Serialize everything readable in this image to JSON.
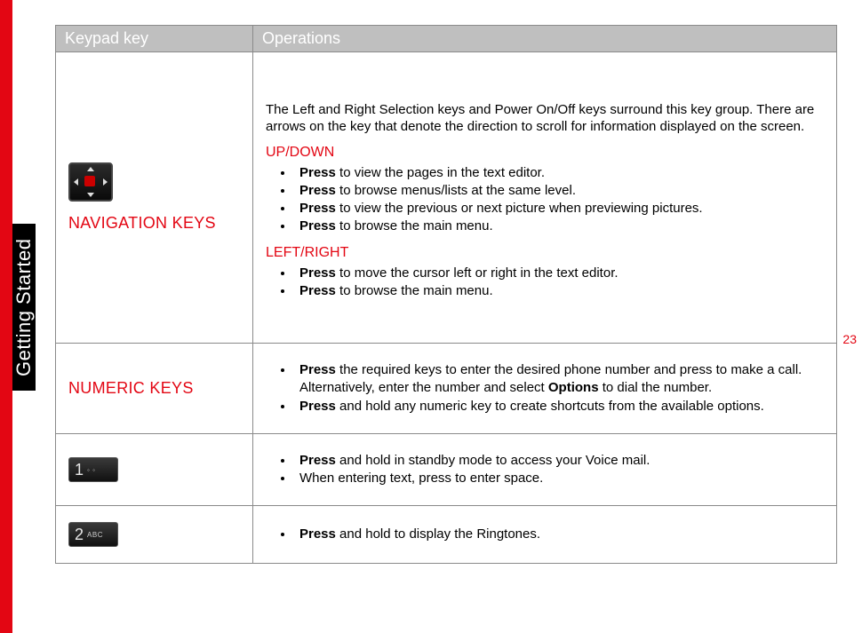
{
  "sidebar": {
    "tab_label": "Getting Started",
    "stripe_color": "#e30613",
    "tab_bg": "#000000",
    "tab_fg": "#ffffff"
  },
  "page_number": "23",
  "table": {
    "header_bg": "#bfbfbf",
    "header_fg": "#ffffff",
    "border_color": "#8a8a8a",
    "columns": {
      "key": "Keypad key",
      "ops": "Operations"
    },
    "rows": {
      "nav": {
        "label": "NAVIGATION KEYS",
        "intro": "The Left and Right Selection keys and Power On/Off keys surround this key group. There are arrows on the key that denote the direction to scroll for information displayed on the screen.",
        "section1_title": "UP/DOWN",
        "section1_items": [
          {
            "b": "Press",
            "t": " to view the pages in the text editor."
          },
          {
            "b": "Press",
            "t": " to browse menus/lists at the same level."
          },
          {
            "b": "Press",
            "t": " to view the previous or next picture when previewing pictures."
          },
          {
            "b": "Press",
            "t": " to browse the main menu."
          }
        ],
        "section2_title": "LEFT/RIGHT",
        "section2_items": [
          {
            "b": "Press",
            "t": " to move the cursor left or right in the text editor."
          },
          {
            "b": "Press",
            "t": " to browse the main menu."
          }
        ]
      },
      "numeric": {
        "label": "NUMERIC KEYS",
        "items": [
          {
            "b": "Press",
            "t1": " the required keys to enter the desired phone number and press to make a call. Alternatively, enter the number and select ",
            "b2": "Options",
            "t2": " to dial the number."
          },
          {
            "b": "Press",
            "t": " and hold any numeric key to create shortcuts from the available options."
          }
        ]
      },
      "key1": {
        "chip_num": "1",
        "chip_sub": "◦ ◦",
        "items": [
          {
            "b": "Press",
            "t": " and hold in standby mode to access your Voice mail."
          },
          {
            "plain": "When entering text, press to enter space."
          }
        ]
      },
      "key2": {
        "chip_num": "2",
        "chip_sub": "ABC",
        "items": [
          {
            "b": "Press",
            "t": " and hold to display the Ringtones."
          }
        ]
      }
    }
  }
}
